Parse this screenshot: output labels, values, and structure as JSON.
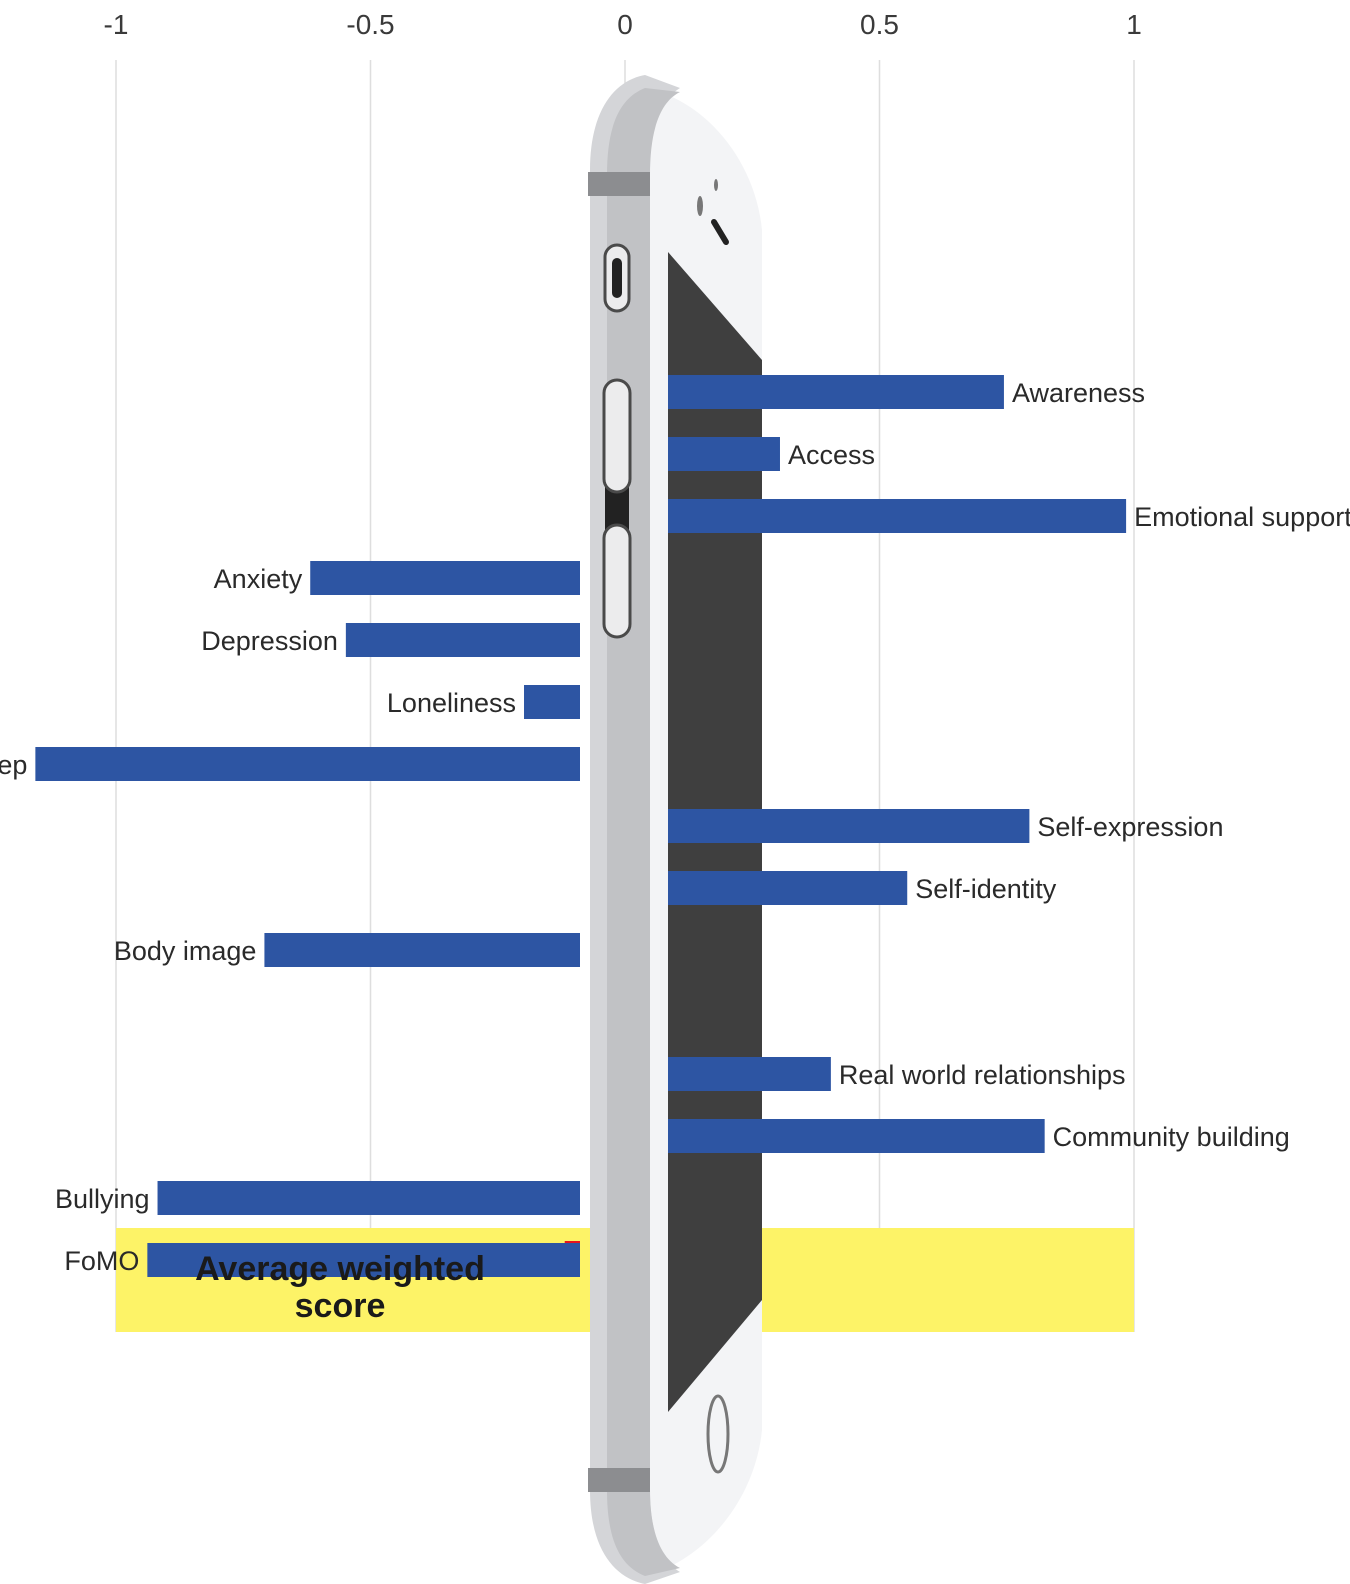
{
  "chart_data": {
    "type": "bar",
    "orientation": "horizontal",
    "categories": [
      "Awareness",
      "Access",
      "Emotional support",
      "Anxiety",
      "Depression",
      "Loneliness",
      "Sleep",
      "Self-expression",
      "Self-identity",
      "Body image",
      "Real world relationships",
      "Community building",
      "Bullying",
      "FoMO"
    ],
    "values": [
      0.66,
      0.22,
      0.9,
      -0.53,
      -0.46,
      -0.11,
      -1.07,
      0.71,
      0.47,
      -0.62,
      0.32,
      0.74,
      -0.83,
      -0.85
    ],
    "summary_label": "Average weighted score",
    "summary_value": -0.03,
    "xlim": [
      -1,
      1
    ],
    "xticks": [
      -1,
      -0.5,
      0,
      0.5,
      1
    ],
    "xtick_labels": [
      "-1",
      "-0.5",
      "0",
      "0.5",
      "1"
    ],
    "grid": true,
    "colors": {
      "bar": "#2d55a3",
      "summary_band": "#fdf367",
      "summary_marker": "#e8141b",
      "grid": "#dedede",
      "phone_body": "#c8c9cb",
      "phone_face": "#f3f4f6",
      "phone_screen": "#3f3f3f"
    }
  }
}
